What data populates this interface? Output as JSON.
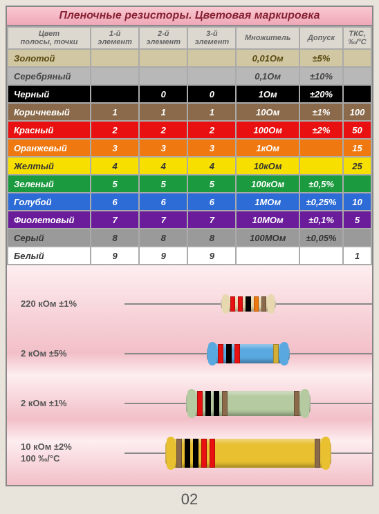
{
  "title": "Пленочные резисторы. Цветовая маркировка",
  "headers": {
    "color": "Цвет\nполосы, точки",
    "d1": "1-й\nэлемент",
    "d2": "2-й\nэлемент",
    "d3": "3-й\nэлемент",
    "mult": "Множитель",
    "tol": "Допуск",
    "tks": "ТКС,\n‰/°С"
  },
  "rows": [
    {
      "name": "Золотой",
      "bg": "#d1c7a3",
      "fg": "#5a4a10",
      "d1": "",
      "d2": "",
      "d3": "",
      "mult": "0,01Ом",
      "tol": "±5%",
      "tks": ""
    },
    {
      "name": "Серебряный",
      "bg": "#b8b8b8",
      "fg": "#444",
      "d1": "",
      "d2": "",
      "d3": "",
      "mult": "0,1Ом",
      "tol": "±10%",
      "tks": ""
    },
    {
      "name": "Черный",
      "bg": "#000000",
      "fg": "#fff",
      "d1": "",
      "d2": "0",
      "d3": "0",
      "mult": "1Ом",
      "tol": "±20%",
      "tks": ""
    },
    {
      "name": "Коричневый",
      "bg": "#8a6a4a",
      "fg": "#fff",
      "d1": "1",
      "d2": "1",
      "d3": "1",
      "mult": "10Ом",
      "tol": "±1%",
      "tks": "100"
    },
    {
      "name": "Красный",
      "bg": "#e81010",
      "fg": "#fff",
      "d1": "2",
      "d2": "2",
      "d3": "2",
      "mult": "100Ом",
      "tol": "±2%",
      "tks": "50"
    },
    {
      "name": "Оранжевый",
      "bg": "#ef7810",
      "fg": "#fff",
      "d1": "3",
      "d2": "3",
      "d3": "3",
      "mult": "1кОм",
      "tol": "",
      "tks": "15"
    },
    {
      "name": "Желтый",
      "bg": "#f7e000",
      "fg": "#333",
      "d1": "4",
      "d2": "4",
      "d3": "4",
      "mult": "10кОм",
      "tol": "",
      "tks": "25"
    },
    {
      "name": "Зеленый",
      "bg": "#1c9a3f",
      "fg": "#fff",
      "d1": "5",
      "d2": "5",
      "d3": "5",
      "mult": "100кОм",
      "tol": "±0,5%",
      "tks": ""
    },
    {
      "name": "Голубой",
      "bg": "#2d6bd6",
      "fg": "#fff",
      "d1": "6",
      "d2": "6",
      "d3": "6",
      "mult": "1МОм",
      "tol": "±0,25%",
      "tks": "10"
    },
    {
      "name": "Фиолетовый",
      "bg": "#6a1c9a",
      "fg": "#fff",
      "d1": "7",
      "d2": "7",
      "d3": "7",
      "mult": "10МОм",
      "tol": "±0,1%",
      "tks": "5"
    },
    {
      "name": "Серый",
      "bg": "#9a9a9a",
      "fg": "#333",
      "d1": "8",
      "d2": "8",
      "d3": "8",
      "mult": "100МОм",
      "tol": "±0,05%",
      "tks": ""
    },
    {
      "name": "Белый",
      "bg": "#ffffff",
      "fg": "#333",
      "d1": "9",
      "d2": "9",
      "d3": "9",
      "mult": "",
      "tol": "",
      "tks": "1"
    }
  ],
  "resistors": [
    {
      "label": "220 кОм ±1%",
      "body_color": "#e8d8b0",
      "body_w": 80,
      "body_h": 22,
      "bands": [
        "#e81010",
        "#e81010",
        "#000000",
        "#ef7810",
        "#8a6a4a"
      ]
    },
    {
      "label": "2 кОм ±5%",
      "body_color": "#5aa8e0",
      "body_w": 120,
      "body_h": 28,
      "bands": [
        "#e81010",
        "#000000",
        "#e81010",
        "#d4af37"
      ]
    },
    {
      "label": "2 кОм ±1%",
      "body_color": "#b5caa0",
      "body_w": 180,
      "body_h": 36,
      "bands": [
        "#e81010",
        "#000000",
        "#000000",
        "#8a6a4a",
        "#8a6a4a"
      ]
    },
    {
      "label": "10 кОм ±2%\n100 ‰/°С",
      "body_color": "#e8c030",
      "body_w": 240,
      "body_h": 42,
      "bands": [
        "#8a6a4a",
        "#000000",
        "#000000",
        "#e81010",
        "#e81010",
        "#8a6a4a"
      ]
    }
  ],
  "page_number": "02"
}
